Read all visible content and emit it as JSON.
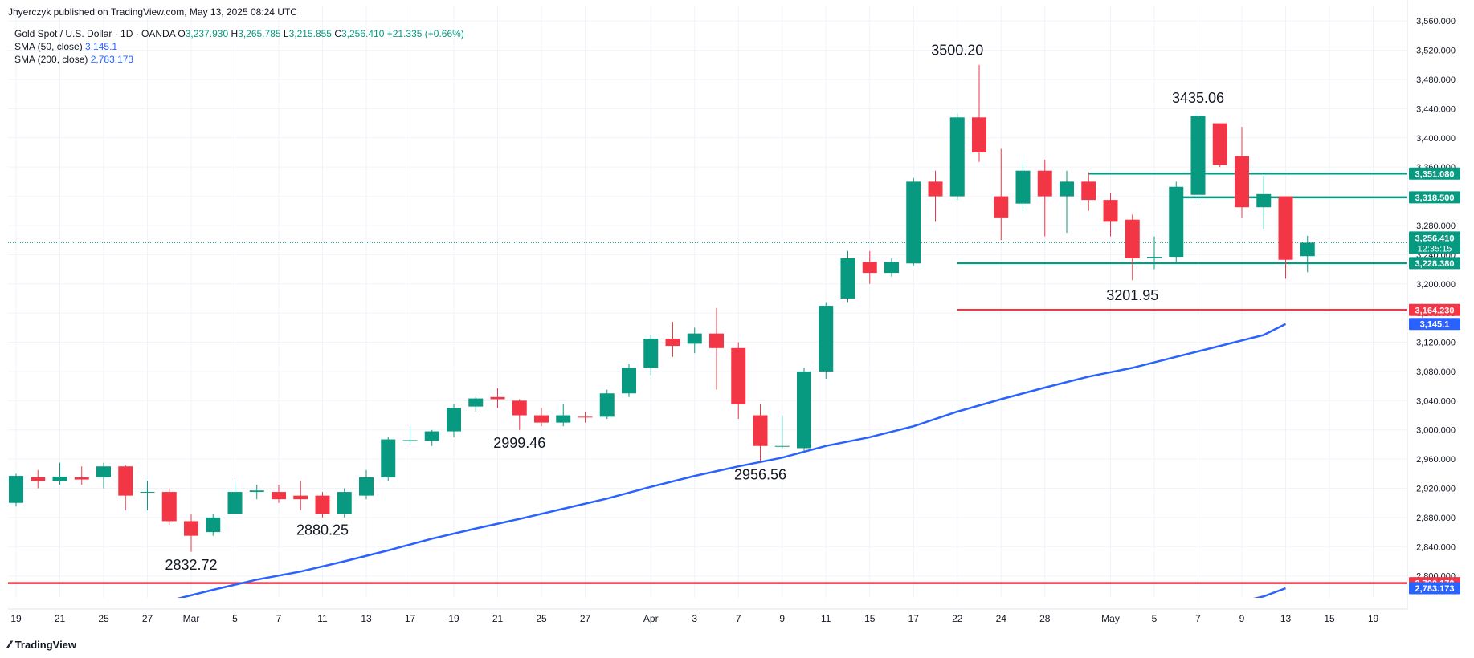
{
  "header": {
    "published": "Jhyerczyk published on TradingView.com, May 13, 2025 08:24 UTC"
  },
  "legend": {
    "symbol": "Gold Spot / U.S. Dollar · 1D · OANDA",
    "o_label": "O",
    "o_value": "3,237.930",
    "h_label": "H",
    "h_value": "3,265.785",
    "l_label": "L",
    "l_value": "3,215.855",
    "c_label": "C",
    "c_value": "3,256.410",
    "change": "+21.335 (+0.66%)",
    "sma50_label": "SMA (50, close)",
    "sma50_value": "3,145.1",
    "sma200_label": "SMA (200, close)",
    "sma200_value": "2,783.173"
  },
  "branding": {
    "name": "TradingView",
    "logo_icon": "tradingview-logo-icon"
  },
  "colors": {
    "up": "#089981",
    "down": "#f23645",
    "sma": "#2962ff",
    "support": "#089981",
    "resistance": "#f23645",
    "grid": "#f0f3fa",
    "axis_text": "#131722"
  },
  "chart_data": {
    "type": "candlestick",
    "ylim": [
      2770,
      3580
    ],
    "y_ticks": [
      2800,
      2840,
      2880,
      2920,
      2960,
      3000,
      3040,
      3080,
      3120,
      3160,
      3200,
      3240,
      3280,
      3320,
      3360,
      3400,
      3440,
      3480,
      3520,
      3560
    ],
    "y_tick_labels": [
      "2,800.000",
      "2,840.000",
      "2,880.000",
      "2,920.000",
      "2,960.000",
      "3,000.000",
      "3,040.000",
      "3,080.000",
      "3,120.000",
      "3,160.000",
      "3,200.000",
      "3,240.000",
      "3,280.000",
      "3,320.000",
      "3,360.000",
      "3,400.000",
      "3,440.000",
      "3,480.000",
      "3,520.000",
      "3,560.000"
    ],
    "x_ticks": [
      {
        "i": 0,
        "label": "19"
      },
      {
        "i": 2,
        "label": "21"
      },
      {
        "i": 4,
        "label": "25"
      },
      {
        "i": 6,
        "label": "27"
      },
      {
        "i": 8,
        "label": "Mar"
      },
      {
        "i": 10,
        "label": "5"
      },
      {
        "i": 12,
        "label": "7"
      },
      {
        "i": 14,
        "label": "11"
      },
      {
        "i": 16,
        "label": "13"
      },
      {
        "i": 18,
        "label": "17"
      },
      {
        "i": 20,
        "label": "19"
      },
      {
        "i": 22,
        "label": "21"
      },
      {
        "i": 24,
        "label": "25"
      },
      {
        "i": 26,
        "label": "27"
      },
      {
        "i": 29,
        "label": "Apr"
      },
      {
        "i": 31,
        "label": "3"
      },
      {
        "i": 33,
        "label": "7"
      },
      {
        "i": 35,
        "label": "9"
      },
      {
        "i": 37,
        "label": "11"
      },
      {
        "i": 39,
        "label": "15"
      },
      {
        "i": 41,
        "label": "17"
      },
      {
        "i": 43,
        "label": "22"
      },
      {
        "i": 45,
        "label": "24"
      },
      {
        "i": 47,
        "label": "28"
      },
      {
        "i": 50,
        "label": "May"
      },
      {
        "i": 52,
        "label": "5"
      },
      {
        "i": 54,
        "label": "7"
      },
      {
        "i": 56,
        "label": "9"
      },
      {
        "i": 58,
        "label": "13"
      },
      {
        "i": 60,
        "label": "15"
      },
      {
        "i": 62,
        "label": "19"
      }
    ],
    "candles": [
      {
        "o": 2900,
        "h": 2940,
        "l": 2895,
        "c": 2937
      },
      {
        "o": 2935,
        "h": 2945,
        "l": 2920,
        "c": 2930
      },
      {
        "o": 2930,
        "h": 2955,
        "l": 2925,
        "c": 2936
      },
      {
        "o": 2935,
        "h": 2950,
        "l": 2925,
        "c": 2932
      },
      {
        "o": 2935,
        "h": 2955,
        "l": 2920,
        "c": 2950
      },
      {
        "o": 2950,
        "h": 2952,
        "l": 2890,
        "c": 2910
      },
      {
        "o": 2915,
        "h": 2930,
        "l": 2890,
        "c": 2915
      },
      {
        "o": 2915,
        "h": 2920,
        "l": 2870,
        "c": 2875
      },
      {
        "o": 2875,
        "h": 2885,
        "l": 2833,
        "c": 2855
      },
      {
        "o": 2860,
        "h": 2885,
        "l": 2855,
        "c": 2880
      },
      {
        "o": 2885,
        "h": 2930,
        "l": 2885,
        "c": 2915
      },
      {
        "o": 2915,
        "h": 2925,
        "l": 2905,
        "c": 2917
      },
      {
        "o": 2915,
        "h": 2925,
        "l": 2900,
        "c": 2905
      },
      {
        "o": 2910,
        "h": 2930,
        "l": 2890,
        "c": 2905
      },
      {
        "o": 2910,
        "h": 2915,
        "l": 2880,
        "c": 2885
      },
      {
        "o": 2885,
        "h": 2920,
        "l": 2880,
        "c": 2915
      },
      {
        "o": 2910,
        "h": 2945,
        "l": 2905,
        "c": 2935
      },
      {
        "o": 2935,
        "h": 2990,
        "l": 2930,
        "c": 2987
      },
      {
        "o": 2985,
        "h": 3005,
        "l": 2980,
        "c": 2986
      },
      {
        "o": 2985,
        "h": 3000,
        "l": 2978,
        "c": 2998
      },
      {
        "o": 2998,
        "h": 3035,
        "l": 2990,
        "c": 3030
      },
      {
        "o": 3032,
        "h": 3045,
        "l": 3025,
        "c": 3043
      },
      {
        "o": 3045,
        "h": 3057,
        "l": 3030,
        "c": 3042
      },
      {
        "o": 3040,
        "h": 3042,
        "l": 3000,
        "c": 3020
      },
      {
        "o": 3020,
        "h": 3030,
        "l": 3005,
        "c": 3010
      },
      {
        "o": 3010,
        "h": 3035,
        "l": 3005,
        "c": 3020
      },
      {
        "o": 3018,
        "h": 3025,
        "l": 3010,
        "c": 3017
      },
      {
        "o": 3018,
        "h": 3055,
        "l": 3015,
        "c": 3050
      },
      {
        "o": 3050,
        "h": 3090,
        "l": 3045,
        "c": 3085
      },
      {
        "o": 3085,
        "h": 3130,
        "l": 3075,
        "c": 3125
      },
      {
        "o": 3125,
        "h": 3148,
        "l": 3100,
        "c": 3115
      },
      {
        "o": 3118,
        "h": 3140,
        "l": 3105,
        "c": 3132
      },
      {
        "o": 3132,
        "h": 3167,
        "l": 3055,
        "c": 3112
      },
      {
        "o": 3112,
        "h": 3120,
        "l": 3015,
        "c": 3035
      },
      {
        "o": 3020,
        "h": 3035,
        "l": 2957,
        "c": 2978
      },
      {
        "o": 2978,
        "h": 3020,
        "l": 2975,
        "c": 2978
      },
      {
        "o": 2975,
        "h": 3085,
        "l": 2970,
        "c": 3080
      },
      {
        "o": 3080,
        "h": 3175,
        "l": 3070,
        "c": 3170
      },
      {
        "o": 3180,
        "h": 3245,
        "l": 3175,
        "c": 3235
      },
      {
        "o": 3230,
        "h": 3245,
        "l": 3200,
        "c": 3215
      },
      {
        "o": 3215,
        "h": 3235,
        "l": 3210,
        "c": 3230
      },
      {
        "o": 3228,
        "h": 3345,
        "l": 3225,
        "c": 3340
      },
      {
        "o": 3340,
        "h": 3355,
        "l": 3285,
        "c": 3320
      },
      {
        "o": 3320,
        "h": 3433,
        "l": 3315,
        "c": 3428
      },
      {
        "o": 3428,
        "h": 3500,
        "l": 3367,
        "c": 3380
      },
      {
        "o": 3320,
        "h": 3385,
        "l": 3260,
        "c": 3290
      },
      {
        "o": 3310,
        "h": 3367,
        "l": 3300,
        "c": 3355
      },
      {
        "o": 3355,
        "h": 3370,
        "l": 3265,
        "c": 3320
      },
      {
        "o": 3320,
        "h": 3355,
        "l": 3270,
        "c": 3340
      },
      {
        "o": 3340,
        "h": 3353,
        "l": 3300,
        "c": 3315
      },
      {
        "o": 3315,
        "h": 3325,
        "l": 3265,
        "c": 3285
      },
      {
        "o": 3288,
        "h": 3295,
        "l": 3205,
        "c": 3235
      },
      {
        "o": 3235,
        "h": 3265,
        "l": 3220,
        "c": 3237
      },
      {
        "o": 3237,
        "h": 3340,
        "l": 3230,
        "c": 3333
      },
      {
        "o": 3322,
        "h": 3435,
        "l": 3315,
        "c": 3430
      },
      {
        "o": 3420,
        "h": 3420,
        "l": 3360,
        "c": 3363
      },
      {
        "o": 3375,
        "h": 3415,
        "l": 3290,
        "c": 3305
      },
      {
        "o": 3305,
        "h": 3348,
        "l": 3275,
        "c": 3323
      },
      {
        "o": 3320,
        "h": 3320,
        "l": 3207,
        "c": 3233
      },
      {
        "o": 3237.93,
        "h": 3265.785,
        "l": 3215.855,
        "c": 3256.41
      }
    ],
    "sma50": [
      [
        5,
        2745
      ],
      [
        7,
        2766
      ],
      [
        9,
        2781
      ],
      [
        11,
        2795
      ],
      [
        13,
        2806
      ],
      [
        15,
        2820
      ],
      [
        17,
        2835
      ],
      [
        19,
        2851
      ],
      [
        21,
        2865
      ],
      [
        23,
        2878
      ],
      [
        25,
        2892
      ],
      [
        27,
        2906
      ],
      [
        29,
        2922
      ],
      [
        31,
        2937
      ],
      [
        33,
        2950
      ],
      [
        35,
        2962
      ],
      [
        37,
        2978
      ],
      [
        39,
        2990
      ],
      [
        41,
        3005
      ],
      [
        43,
        3025
      ],
      [
        45,
        3042
      ],
      [
        47,
        3058
      ],
      [
        49,
        3073
      ],
      [
        51,
        3085
      ],
      [
        53,
        3100
      ],
      [
        55,
        3115
      ],
      [
        57,
        3130
      ],
      [
        58,
        3145.1
      ]
    ],
    "sma200": [
      [
        53,
        2745
      ],
      [
        55,
        2758
      ],
      [
        57,
        2772
      ],
      [
        58,
        2783.173
      ]
    ],
    "hlines": [
      {
        "value": 3351.08,
        "label": "3,351.080",
        "color": "#089981",
        "from": 49,
        "to": 64
      },
      {
        "value": 3318.5,
        "label": "3,318.500",
        "color": "#089981",
        "from": 53,
        "to": 64
      },
      {
        "value": 3228.38,
        "label": "3,228.380",
        "color": "#089981",
        "from": 43,
        "to": 64
      },
      {
        "value": 3164.23,
        "label": "3,164.230",
        "color": "#f23645",
        "from": 43,
        "to": 64
      },
      {
        "value": 2790.17,
        "label": "2,790.170",
        "color": "#f23645",
        "from": -1,
        "to": 64
      }
    ],
    "last_price": {
      "value": 3256.41,
      "label": "3,256.410",
      "countdown": "12:35:15"
    },
    "sma_tags": [
      {
        "value": 3145.1,
        "label": "3,145.1"
      },
      {
        "value": 2783.173,
        "label": "2,783.173"
      }
    ],
    "annotations": [
      {
        "i": 43,
        "value": 3500.2,
        "label": "3500.20",
        "pos": "above"
      },
      {
        "i": 54,
        "value": 3435.06,
        "label": "3435.06",
        "pos": "above"
      },
      {
        "i": 51,
        "value": 3201.95,
        "label": "3201.95",
        "pos": "below"
      },
      {
        "i": 23,
        "value": 2999.46,
        "label": "2999.46",
        "pos": "below"
      },
      {
        "i": 34,
        "value": 2956.56,
        "label": "2956.56",
        "pos": "below"
      },
      {
        "i": 14,
        "value": 2880.25,
        "label": "2880.25",
        "pos": "below"
      },
      {
        "i": 8,
        "value": 2832.72,
        "label": "2832.72",
        "pos": "below"
      }
    ]
  }
}
